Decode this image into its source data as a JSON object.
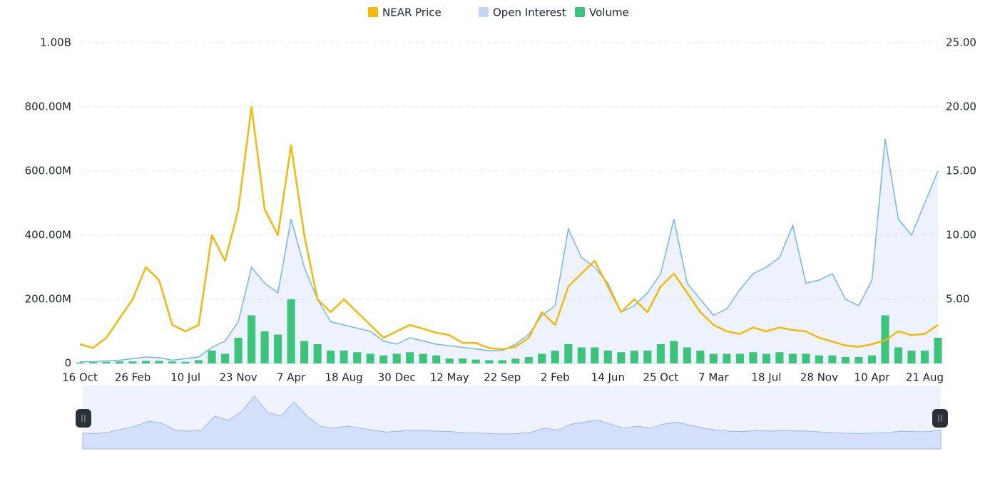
{
  "chart_data": {
    "type": "line",
    "legend": "top",
    "grid": true,
    "categories": [
      "16 Oct",
      null,
      null,
      null,
      "26 Feb",
      null,
      null,
      null,
      "10 Jul",
      null,
      null,
      null,
      "23 Nov",
      null,
      null,
      null,
      "7 Apr",
      null,
      null,
      null,
      "18 Aug",
      null,
      null,
      null,
      "30 Dec",
      null,
      null,
      null,
      "12 May",
      null,
      null,
      null,
      "22 Sep",
      null,
      null,
      null,
      "2 Feb",
      null,
      null,
      null,
      "14 Jun",
      null,
      null,
      null,
      "25 Oct",
      null,
      null,
      null,
      "7 Mar",
      null,
      null,
      null,
      "18 Jul",
      null,
      null,
      null,
      "28 Nov",
      null,
      null,
      null,
      "10 Apr",
      null,
      null,
      null,
      "21 Aug",
      null
    ],
    "ylim": [
      0,
      1000000000
    ],
    "yticks": [
      {
        "value": 0,
        "label": "0"
      },
      {
        "value": 200000000,
        "label": "200.00M"
      },
      {
        "value": 400000000,
        "label": "400.00M"
      },
      {
        "value": 600000000,
        "label": "600.00M"
      },
      {
        "value": 800000000,
        "label": "800.00M"
      },
      {
        "value": 1000000000,
        "label": "1.00B"
      }
    ],
    "y2lim": [
      0,
      25
    ],
    "y2ticks": [
      {
        "value": 5,
        "label": "5.00"
      },
      {
        "value": 10,
        "label": "10.00"
      },
      {
        "value": 15,
        "label": "15.00"
      },
      {
        "value": 20,
        "label": "20.00"
      },
      {
        "value": 25,
        "label": "25.00"
      }
    ],
    "series": [
      {
        "name": "NEAR Price",
        "type": "line",
        "axis": "y2",
        "color": "#f0b90b",
        "values": [
          1.5,
          1.2,
          2,
          3.5,
          5,
          7.5,
          6.5,
          3,
          2.5,
          3,
          10,
          8,
          12,
          20,
          12,
          10,
          17,
          10,
          5,
          4,
          5,
          4,
          3,
          2,
          2.5,
          3,
          2.7,
          2.4,
          2.2,
          1.6,
          1.6,
          1.2,
          1.1,
          1.3,
          2,
          4,
          3,
          6,
          7,
          8,
          6,
          4,
          5,
          4,
          6,
          7,
          5.5,
          4,
          3,
          2.5,
          2.3,
          2.8,
          2.5,
          2.8,
          2.6,
          2.5,
          2,
          1.7,
          1.4,
          1.3,
          1.5,
          1.8,
          2.5,
          2.2,
          2.3,
          3
        ]
      },
      {
        "name": "Open Interest",
        "type": "area",
        "color": "#c3d5f5",
        "line_color": "#76b5ea",
        "values": [
          5000000,
          6000000,
          8000000,
          10000000,
          15000000,
          20000000,
          18000000,
          10000000,
          15000000,
          20000000,
          50000000,
          70000000,
          130000000,
          300000000,
          250000000,
          220000000,
          450000000,
          300000000,
          200000000,
          130000000,
          120000000,
          110000000,
          100000000,
          70000000,
          60000000,
          80000000,
          70000000,
          60000000,
          55000000,
          50000000,
          45000000,
          40000000,
          40000000,
          60000000,
          90000000,
          150000000,
          180000000,
          420000000,
          330000000,
          300000000,
          250000000,
          160000000,
          180000000,
          220000000,
          280000000,
          450000000,
          250000000,
          200000000,
          150000000,
          170000000,
          230000000,
          280000000,
          300000000,
          330000000,
          430000000,
          250000000,
          260000000,
          280000000,
          200000000,
          180000000,
          260000000,
          700000000,
          450000000,
          400000000,
          500000000,
          600000000
        ]
      },
      {
        "name": "Volume",
        "type": "bar",
        "color": "#3cc47c",
        "values": [
          3000000,
          4000000,
          5000000,
          6000000,
          6000000,
          8000000,
          8000000,
          6000000,
          5000000,
          10000000,
          40000000,
          30000000,
          80000000,
          150000000,
          100000000,
          90000000,
          200000000,
          70000000,
          60000000,
          40000000,
          40000000,
          35000000,
          30000000,
          25000000,
          30000000,
          35000000,
          30000000,
          25000000,
          15000000,
          15000000,
          12000000,
          10000000,
          10000000,
          15000000,
          20000000,
          30000000,
          40000000,
          60000000,
          50000000,
          50000000,
          40000000,
          35000000,
          40000000,
          40000000,
          60000000,
          70000000,
          50000000,
          40000000,
          30000000,
          30000000,
          30000000,
          35000000,
          30000000,
          35000000,
          30000000,
          30000000,
          25000000,
          25000000,
          20000000,
          20000000,
          25000000,
          150000000,
          50000000,
          40000000,
          40000000,
          80000000
        ]
      }
    ]
  }
}
